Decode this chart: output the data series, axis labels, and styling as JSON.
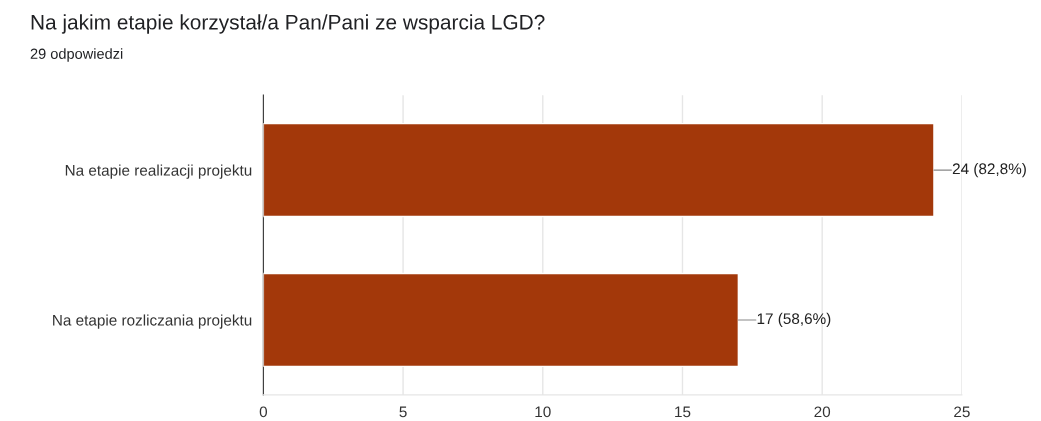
{
  "chart_data": {
    "type": "bar",
    "orientation": "horizontal",
    "title": "Na jakim etapie korzystał/a Pan/Pani ze wsparcia LGD?",
    "subtitle": "29 odpowiedzi",
    "categories": [
      "Na etapie realizacji projektu",
      "Na etapie rozliczania projektu"
    ],
    "values": [
      24,
      17
    ],
    "color": "#a3380a",
    "value_labels": [
      "24 (82,8%)",
      "17 (58,6%)"
    ],
    "xlim": [
      0,
      25
    ],
    "xticks": [
      0,
      5,
      10,
      15,
      20,
      25
    ],
    "grid": "x"
  }
}
